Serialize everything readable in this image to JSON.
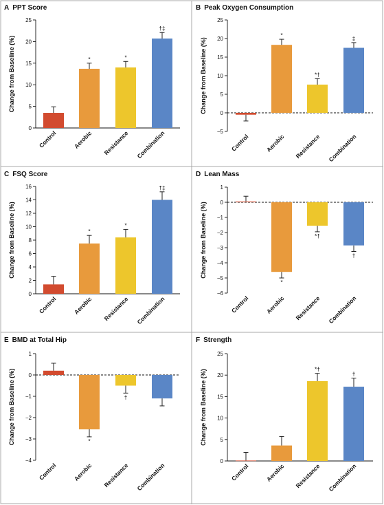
{
  "chart_data": [
    {
      "panel": "A",
      "type": "bar",
      "title": "PPT Score",
      "ylabel": "Change from Baseline (%)",
      "xlabel": "",
      "categories": [
        "Control",
        "Aerobic",
        "Resistance",
        "Combination"
      ],
      "values": [
        3.5,
        13.7,
        14.0,
        20.7
      ],
      "errors": [
        1.4,
        1.3,
        1.4,
        1.4
      ],
      "annotations": [
        "",
        "*",
        "*",
        "†‡"
      ],
      "ylim": [
        0,
        25
      ],
      "yticks": [
        0,
        5,
        10,
        15,
        20,
        25
      ],
      "baseline_dashed": false
    },
    {
      "panel": "B",
      "type": "bar",
      "title": "Peak Oxygen Consumption",
      "ylabel": "Change from Baseline (%)",
      "xlabel": "",
      "categories": [
        "Control",
        "Aerobic",
        "Resistance",
        "Combination"
      ],
      "values": [
        -0.5,
        18.3,
        7.6,
        17.5
      ],
      "errors": [
        1.7,
        1.5,
        1.6,
        1.4
      ],
      "annotations": [
        "",
        "*",
        "*†",
        "‡"
      ],
      "ylim": [
        -5,
        25
      ],
      "yticks": [
        -5,
        0,
        5,
        10,
        15,
        20,
        25
      ],
      "baseline_dashed": true
    },
    {
      "panel": "C",
      "type": "bar",
      "title": "FSQ Score",
      "ylabel": "Change from Baseline (%)",
      "xlabel": "",
      "categories": [
        "Control",
        "Aerobic",
        "Resistance",
        "Combination"
      ],
      "values": [
        1.4,
        7.5,
        8.4,
        14.0
      ],
      "errors": [
        1.2,
        1.2,
        1.2,
        1.2
      ],
      "annotations": [
        "",
        "*",
        "*",
        "†‡"
      ],
      "ylim": [
        0,
        16
      ],
      "yticks": [
        0,
        2,
        4,
        6,
        8,
        10,
        12,
        14,
        16
      ],
      "baseline_dashed": false
    },
    {
      "panel": "D",
      "type": "bar",
      "title": "Lean Mass",
      "ylabel": "Change from Baseline (%)",
      "xlabel": "",
      "categories": [
        "Control",
        "Aerobic",
        "Resistance",
        "Combination"
      ],
      "values": [
        0.05,
        -4.6,
        -1.55,
        -2.85
      ],
      "errors": [
        0.35,
        0.4,
        0.4,
        0.4
      ],
      "annotations": [
        "",
        "*",
        "*†",
        "†"
      ],
      "ylim": [
        -6,
        1
      ],
      "yticks": [
        -6,
        -5,
        -4,
        -3,
        -2,
        -1,
        0,
        1
      ],
      "baseline_dashed": true
    },
    {
      "panel": "E",
      "type": "bar",
      "title": "BMD at Total Hip",
      "ylabel": "Change from Baseline (%)",
      "xlabel": "",
      "categories": [
        "Control",
        "Aerobic",
        "Resistance",
        "Combination"
      ],
      "values": [
        0.2,
        -2.55,
        -0.5,
        -1.1
      ],
      "errors": [
        0.35,
        0.35,
        0.35,
        0.35
      ],
      "annotations": [
        "",
        "*",
        "†",
        ""
      ],
      "ylim": [
        -4,
        1
      ],
      "yticks": [
        -4,
        -3,
        -2,
        -1,
        0,
        1
      ],
      "baseline_dashed": true
    },
    {
      "panel": "F",
      "type": "bar",
      "title": "Strength",
      "ylabel": "Change from Baseline (%)",
      "xlabel": "",
      "categories": [
        "Control",
        "Aerobic",
        "Resistance",
        "Combination"
      ],
      "values": [
        0.1,
        3.6,
        18.6,
        17.3
      ],
      "errors": [
        1.9,
        2.1,
        1.8,
        2.0
      ],
      "annotations": [
        "",
        "",
        "*†",
        "†"
      ],
      "ylim": [
        0,
        25
      ],
      "yticks": [
        0,
        5,
        10,
        15,
        20,
        25
      ],
      "baseline_dashed": false
    }
  ],
  "colors": {
    "bars": [
      "#d24b2f",
      "#e89a3c",
      "#edc62c",
      "#5a86c6"
    ],
    "border": "#a8a8a8",
    "text": "#111111"
  }
}
